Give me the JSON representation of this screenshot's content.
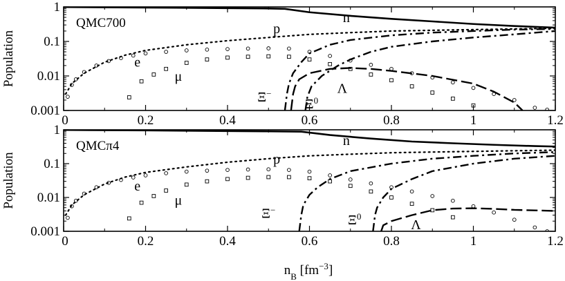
{
  "chart_data": [
    {
      "type": "line",
      "title": "QMC700",
      "xlabel": "",
      "ylabel": "Population",
      "xlim": [
        0,
        1.2
      ],
      "ylim": [
        0.001,
        1
      ],
      "yscale": "log",
      "x_ticks": [
        {
          "value": 0,
          "label": "0"
        },
        {
          "value": 0.2,
          "label": "0.2"
        },
        {
          "value": 0.4,
          "label": "0.4"
        },
        {
          "value": 0.6,
          "label": "0.6"
        },
        {
          "value": 0.8,
          "label": "0.8"
        },
        {
          "value": 1.0,
          "label": "1"
        },
        {
          "value": 1.2,
          "label": "1.2"
        }
      ],
      "y_ticks": [
        {
          "value": 0.001,
          "label": "0.001"
        },
        {
          "value": 0.01,
          "label": "0.01"
        },
        {
          "value": 0.1,
          "label": "0.1"
        },
        {
          "value": 1,
          "label": "1"
        }
      ],
      "series": [
        {
          "name": "n",
          "style": "solid",
          "label_at": [
            0.69,
            0.5
          ],
          "points": [
            [
              0.0,
              0.99
            ],
            [
              0.2,
              0.96
            ],
            [
              0.4,
              0.92
            ],
            [
              0.5,
              0.9
            ],
            [
              0.54,
              0.88
            ],
            [
              0.6,
              0.7
            ],
            [
              0.7,
              0.55
            ],
            [
              0.8,
              0.45
            ],
            [
              0.9,
              0.38
            ],
            [
              1.0,
              0.32
            ],
            [
              1.1,
              0.28
            ],
            [
              1.2,
              0.25
            ]
          ]
        },
        {
          "name": "p",
          "style": "dotted",
          "label_at": [
            0.52,
            0.24
          ],
          "points": [
            [
              0.005,
              0.003
            ],
            [
              0.02,
              0.006
            ],
            [
              0.05,
              0.012
            ],
            [
              0.1,
              0.025
            ],
            [
              0.15,
              0.04
            ],
            [
              0.2,
              0.055
            ],
            [
              0.3,
              0.08
            ],
            [
              0.4,
              0.105
            ],
            [
              0.5,
              0.13
            ],
            [
              0.6,
              0.16
            ],
            [
              0.7,
              0.18
            ],
            [
              0.8,
              0.2
            ],
            [
              0.9,
              0.21
            ],
            [
              1.0,
              0.22
            ],
            [
              1.1,
              0.23
            ],
            [
              1.2,
              0.24
            ]
          ]
        },
        {
          "name": "e",
          "style": "circles",
          "label_at": [
            0.18,
            0.026
          ],
          "points": [
            [
              0.01,
              0.0025
            ],
            [
              0.02,
              0.0055
            ],
            [
              0.03,
              0.008
            ],
            [
              0.05,
              0.013
            ],
            [
              0.08,
              0.02
            ],
            [
              0.11,
              0.027
            ],
            [
              0.14,
              0.033
            ],
            [
              0.17,
              0.039
            ],
            [
              0.2,
              0.045
            ],
            [
              0.25,
              0.05
            ],
            [
              0.3,
              0.055
            ],
            [
              0.35,
              0.058
            ],
            [
              0.4,
              0.06
            ],
            [
              0.45,
              0.062
            ],
            [
              0.5,
              0.063
            ],
            [
              0.55,
              0.062
            ],
            [
              0.6,
              0.05
            ],
            [
              0.65,
              0.038
            ],
            [
              0.7,
              0.028
            ],
            [
              0.75,
              0.021
            ],
            [
              0.8,
              0.016
            ],
            [
              0.85,
              0.012
            ],
            [
              0.9,
              0.009
            ],
            [
              0.95,
              0.0065
            ],
            [
              1.0,
              0.0045
            ],
            [
              1.05,
              0.003
            ],
            [
              1.1,
              0.002
            ],
            [
              1.15,
              0.0012
            ],
            [
              1.18,
              0.00105
            ]
          ]
        },
        {
          "name": "μ",
          "style": "squares",
          "label_at": [
            0.28,
            0.01
          ],
          "points": [
            [
              0.16,
              0.0024
            ],
            [
              0.19,
              0.007
            ],
            [
              0.22,
              0.011
            ],
            [
              0.25,
              0.016
            ],
            [
              0.3,
              0.024
            ],
            [
              0.35,
              0.03
            ],
            [
              0.4,
              0.034
            ],
            [
              0.45,
              0.036
            ],
            [
              0.5,
              0.037
            ],
            [
              0.55,
              0.036
            ],
            [
              0.6,
              0.03
            ],
            [
              0.65,
              0.022
            ],
            [
              0.7,
              0.016
            ],
            [
              0.75,
              0.011
            ],
            [
              0.8,
              0.0075
            ],
            [
              0.85,
              0.005
            ],
            [
              0.9,
              0.0033
            ],
            [
              0.95,
              0.0022
            ],
            [
              1.0,
              0.0014
            ]
          ]
        },
        {
          "name": "Ξ⁻",
          "style": "dashdot",
          "label_at": [
            0.49,
            0.0025
          ],
          "points": [
            [
              0.54,
              0.001
            ],
            [
              0.545,
              0.003
            ],
            [
              0.55,
              0.006
            ],
            [
              0.56,
              0.012
            ],
            [
              0.58,
              0.025
            ],
            [
              0.6,
              0.045
            ],
            [
              0.65,
              0.08
            ],
            [
              0.7,
              0.11
            ],
            [
              0.8,
              0.15
            ],
            [
              0.9,
              0.18
            ],
            [
              1.0,
              0.2
            ],
            [
              1.1,
              0.22
            ],
            [
              1.2,
              0.23
            ]
          ]
        },
        {
          "name": "Ξ⁰",
          "style": "longdash",
          "label_at": [
            0.605,
            0.0016
          ],
          "points": [
            [
              0.555,
              0.001
            ],
            [
              0.56,
              0.003
            ],
            [
              0.565,
              0.005
            ],
            [
              0.575,
              0.008
            ],
            [
              0.6,
              0.012
            ],
            [
              0.65,
              0.016
            ],
            [
              0.7,
              0.017
            ],
            [
              0.75,
              0.016
            ],
            [
              0.8,
              0.014
            ],
            [
              0.9,
              0.01
            ],
            [
              1.0,
              0.006
            ],
            [
              1.05,
              0.0035
            ],
            [
              1.1,
              0.0017
            ],
            [
              1.12,
              0.001
            ]
          ]
        },
        {
          "name": "Λ",
          "style": "dashdot",
          "label_at": [
            0.68,
            0.0045
          ],
          "points": [
            [
              0.59,
              0.001
            ],
            [
              0.595,
              0.0025
            ],
            [
              0.605,
              0.005
            ],
            [
              0.63,
              0.01
            ],
            [
              0.67,
              0.02
            ],
            [
              0.7,
              0.03
            ],
            [
              0.75,
              0.05
            ],
            [
              0.8,
              0.07
            ],
            [
              0.9,
              0.1
            ],
            [
              1.0,
              0.13
            ],
            [
              1.1,
              0.16
            ],
            [
              1.2,
              0.2
            ]
          ]
        }
      ]
    },
    {
      "type": "line",
      "title": "QMCπ4",
      "xlabel": "n_B [fm⁻³]",
      "ylabel": "Population",
      "xlim": [
        0,
        1.2
      ],
      "ylim": [
        0.001,
        1
      ],
      "yscale": "log",
      "x_ticks": [
        {
          "value": 0,
          "label": "0"
        },
        {
          "value": 0.2,
          "label": "0.2"
        },
        {
          "value": 0.4,
          "label": "0.4"
        },
        {
          "value": 0.6,
          "label": "0.6"
        },
        {
          "value": 0.8,
          "label": "0.8"
        },
        {
          "value": 1.0,
          "label": "1"
        },
        {
          "value": 1.2,
          "label": "1.2"
        }
      ],
      "y_ticks": [
        {
          "value": 0.001,
          "label": "0.001"
        },
        {
          "value": 0.01,
          "label": "0.01"
        },
        {
          "value": 0.1,
          "label": "0.1"
        },
        {
          "value": 1,
          "label": "1"
        }
      ],
      "series": [
        {
          "name": "n",
          "style": "solid",
          "label_at": [
            0.69,
            0.5
          ],
          "points": [
            [
              0.0,
              0.99
            ],
            [
              0.2,
              0.96
            ],
            [
              0.4,
              0.92
            ],
            [
              0.5,
              0.9
            ],
            [
              0.58,
              0.88
            ],
            [
              0.65,
              0.7
            ],
            [
              0.75,
              0.55
            ],
            [
              0.85,
              0.45
            ],
            [
              0.95,
              0.4
            ],
            [
              1.05,
              0.36
            ],
            [
              1.15,
              0.33
            ],
            [
              1.2,
              0.32
            ]
          ]
        },
        {
          "name": "p",
          "style": "dotted",
          "label_at": [
            0.52,
            0.14
          ],
          "points": [
            [
              0.005,
              0.003
            ],
            [
              0.02,
              0.006
            ],
            [
              0.05,
              0.012
            ],
            [
              0.1,
              0.025
            ],
            [
              0.15,
              0.04
            ],
            [
              0.2,
              0.055
            ],
            [
              0.3,
              0.08
            ],
            [
              0.4,
              0.11
            ],
            [
              0.5,
              0.14
            ],
            [
              0.6,
              0.17
            ],
            [
              0.7,
              0.19
            ],
            [
              0.8,
              0.21
            ],
            [
              0.9,
              0.22
            ],
            [
              1.0,
              0.23
            ],
            [
              1.1,
              0.24
            ],
            [
              1.2,
              0.25
            ]
          ]
        },
        {
          "name": "e",
          "style": "circles",
          "label_at": [
            0.18,
            0.022
          ],
          "points": [
            [
              0.01,
              0.0025
            ],
            [
              0.02,
              0.0055
            ],
            [
              0.03,
              0.008
            ],
            [
              0.05,
              0.013
            ],
            [
              0.08,
              0.02
            ],
            [
              0.11,
              0.027
            ],
            [
              0.14,
              0.033
            ],
            [
              0.17,
              0.039
            ],
            [
              0.2,
              0.045
            ],
            [
              0.25,
              0.052
            ],
            [
              0.3,
              0.058
            ],
            [
              0.35,
              0.062
            ],
            [
              0.4,
              0.065
            ],
            [
              0.45,
              0.067
            ],
            [
              0.5,
              0.068
            ],
            [
              0.55,
              0.065
            ],
            [
              0.6,
              0.058
            ],
            [
              0.65,
              0.045
            ],
            [
              0.7,
              0.034
            ],
            [
              0.75,
              0.026
            ],
            [
              0.8,
              0.02
            ],
            [
              0.85,
              0.015
            ],
            [
              0.9,
              0.011
            ],
            [
              0.95,
              0.008
            ],
            [
              1.0,
              0.0055
            ],
            [
              1.05,
              0.0036
            ],
            [
              1.1,
              0.0022
            ],
            [
              1.15,
              0.0013
            ],
            [
              1.18,
              0.001
            ]
          ]
        },
        {
          "name": "μ",
          "style": "squares",
          "label_at": [
            0.28,
            0.0085
          ],
          "points": [
            [
              0.16,
              0.0024
            ],
            [
              0.19,
              0.007
            ],
            [
              0.22,
              0.011
            ],
            [
              0.25,
              0.016
            ],
            [
              0.3,
              0.024
            ],
            [
              0.35,
              0.03
            ],
            [
              0.4,
              0.035
            ],
            [
              0.45,
              0.038
            ],
            [
              0.5,
              0.04
            ],
            [
              0.55,
              0.04
            ],
            [
              0.6,
              0.037
            ],
            [
              0.65,
              0.03
            ],
            [
              0.7,
              0.022
            ],
            [
              0.75,
              0.015
            ],
            [
              0.8,
              0.01
            ],
            [
              0.85,
              0.0065
            ],
            [
              0.9,
              0.0042
            ],
            [
              0.95,
              0.0026
            ]
          ]
        },
        {
          "name": "Ξ⁻",
          "style": "dashdot",
          "label_at": [
            0.5,
            0.0035
          ],
          "points": [
            [
              0.575,
              0.001
            ],
            [
              0.58,
              0.003
            ],
            [
              0.585,
              0.006
            ],
            [
              0.6,
              0.012
            ],
            [
              0.62,
              0.02
            ],
            [
              0.65,
              0.035
            ],
            [
              0.7,
              0.06
            ],
            [
              0.8,
              0.1
            ],
            [
              0.9,
              0.14
            ],
            [
              1.0,
              0.17
            ],
            [
              1.1,
              0.2
            ],
            [
              1.2,
              0.22
            ]
          ]
        },
        {
          "name": "Ξ⁰",
          "style": "dashdot",
          "label_at": [
            0.71,
            0.0022
          ],
          "points": [
            [
              0.755,
              0.001
            ],
            [
              0.76,
              0.003
            ],
            [
              0.765,
              0.005
            ],
            [
              0.78,
              0.01
            ],
            [
              0.8,
              0.018
            ],
            [
              0.85,
              0.035
            ],
            [
              0.9,
              0.06
            ],
            [
              1.0,
              0.1
            ],
            [
              1.1,
              0.14
            ],
            [
              1.2,
              0.17
            ]
          ]
        },
        {
          "name": "Λ",
          "style": "longdash",
          "label_at": [
            0.86,
            0.0016
          ],
          "points": [
            [
              0.775,
              0.001
            ],
            [
              0.78,
              0.0015
            ],
            [
              0.8,
              0.002
            ],
            [
              0.85,
              0.003
            ],
            [
              0.9,
              0.0042
            ],
            [
              0.95,
              0.0047
            ],
            [
              1.0,
              0.0048
            ],
            [
              1.05,
              0.0046
            ],
            [
              1.1,
              0.0043
            ],
            [
              1.2,
              0.004
            ]
          ]
        }
      ]
    }
  ]
}
